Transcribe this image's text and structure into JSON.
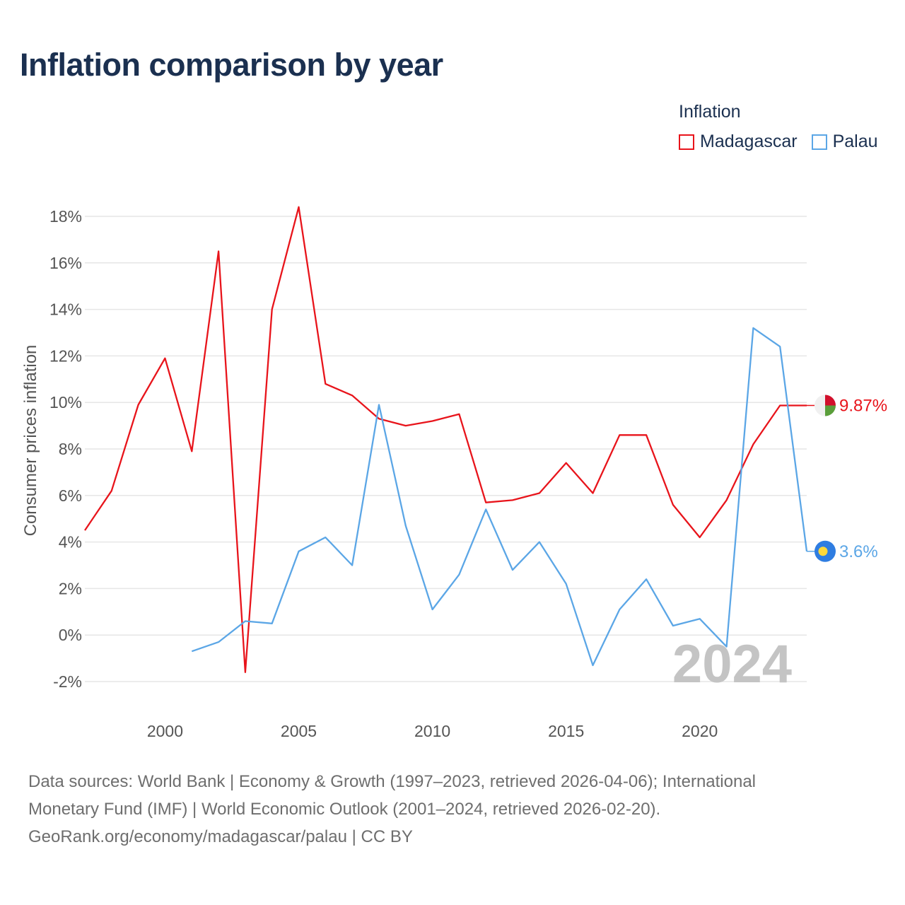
{
  "header": {
    "title": "Inflation comparison by year"
  },
  "legend": {
    "title": "Inflation"
  },
  "footer": {
    "line1": "Data sources: World Bank | Economy & Growth (1997–2023, retrieved 2026-04-06); International",
    "line2": "Monetary Fund (IMF) | World Economic Outlook (2001–2024, retrieved 2026-02-20).",
    "line3": "GeoRank.org/economy/madagascar/palau | CC BY"
  },
  "colors": {
    "madagascar": "#e8141b",
    "palau": "#5ba6e6",
    "grid": "#e6e6e6"
  },
  "chart_data": {
    "type": "line",
    "title": "Inflation comparison by year",
    "xlabel": "",
    "ylabel": "Consumer prices inflation",
    "xlim": [
      1997,
      2024
    ],
    "ylim": [
      -2,
      18
    ],
    "x_ticks": [
      2000,
      2005,
      2010,
      2015,
      2020
    ],
    "y_ticks": [
      -2,
      0,
      2,
      4,
      6,
      8,
      10,
      12,
      14,
      16,
      18
    ],
    "y_tick_labels": [
      "-2%",
      "0%",
      "2%",
      "4%",
      "6%",
      "8%",
      "10%",
      "12%",
      "14%",
      "16%",
      "18%"
    ],
    "current_year": "2024",
    "series": [
      {
        "name": "Madagascar",
        "color": "#e8141b",
        "end_label": "9.87%",
        "x": [
          1997,
          1998,
          1999,
          2000,
          2001,
          2002,
          2003,
          2004,
          2005,
          2006,
          2007,
          2008,
          2009,
          2010,
          2011,
          2012,
          2013,
          2014,
          2015,
          2016,
          2017,
          2018,
          2019,
          2020,
          2021,
          2022,
          2023,
          2024
        ],
        "values": [
          4.5,
          6.2,
          9.9,
          11.9,
          7.9,
          16.5,
          -1.6,
          14.0,
          18.4,
          10.8,
          10.3,
          9.3,
          9.0,
          9.2,
          9.5,
          5.7,
          5.8,
          6.1,
          7.4,
          6.1,
          8.6,
          8.6,
          5.6,
          4.2,
          5.8,
          8.2,
          9.87,
          9.87
        ]
      },
      {
        "name": "Palau",
        "color": "#5ba6e6",
        "end_label": "3.6%",
        "x": [
          2001,
          2002,
          2003,
          2004,
          2005,
          2006,
          2007,
          2008,
          2009,
          2010,
          2011,
          2012,
          2013,
          2014,
          2015,
          2016,
          2017,
          2018,
          2019,
          2020,
          2021,
          2022,
          2023,
          2024
        ],
        "values": [
          -0.7,
          -0.3,
          0.6,
          0.5,
          3.6,
          4.2,
          3.0,
          9.9,
          4.7,
          1.1,
          2.6,
          5.4,
          2.8,
          4.0,
          2.2,
          -1.3,
          1.1,
          2.4,
          0.4,
          0.7,
          -0.5,
          13.2,
          12.4,
          3.6
        ]
      }
    ]
  }
}
